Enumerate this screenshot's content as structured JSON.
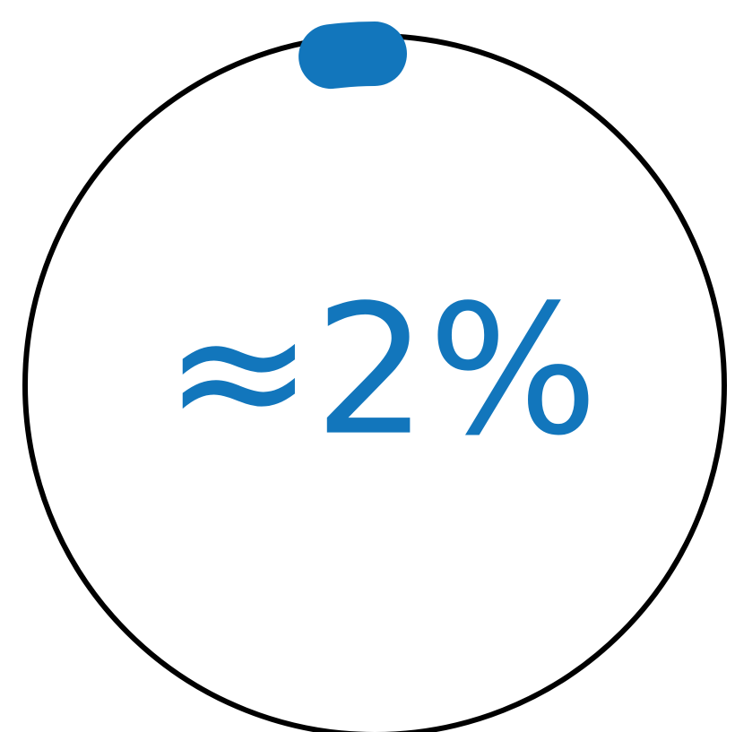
{
  "chart_data": {
    "type": "pie",
    "values": [
      2
    ],
    "value_labels": [
      "≈2%"
    ],
    "color": "#1276bc",
    "ring_color": "#000000"
  }
}
